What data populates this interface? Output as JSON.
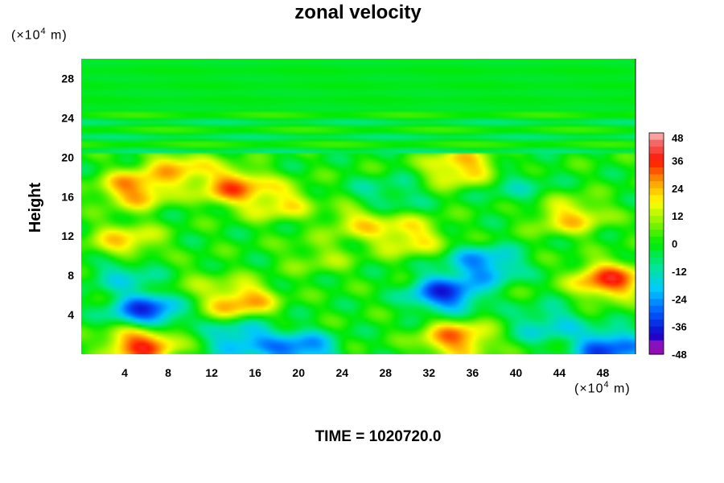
{
  "chart_data": {
    "type": "heatmap",
    "title": "zonal velocity",
    "ylabel": "Height",
    "x_unit": {
      "prefix": "(×10",
      "exp": "4",
      "suffix": " m)"
    },
    "y_unit": {
      "prefix": "(×10",
      "exp": "4",
      "suffix": " m)"
    },
    "xlim": [
      0,
      51
    ],
    "ylim": [
      0,
      30
    ],
    "x_ticks": [
      "4",
      "8",
      "12",
      "16",
      "20",
      "24",
      "28",
      "32",
      "36",
      "40",
      "44",
      "48"
    ],
    "y_ticks": [
      "4",
      "8",
      "12",
      "16",
      "20",
      "24",
      "28"
    ],
    "colorbar": {
      "vmin": -48,
      "vmax": 48,
      "ticks": [
        "48",
        "36",
        "24",
        "12",
        "0",
        "-12",
        "-24",
        "-36",
        "-48"
      ]
    },
    "features": [
      {
        "x": 5.5,
        "y": 1.0,
        "value": 52
      },
      {
        "x": 6.0,
        "y": 4.5,
        "value": -50
      },
      {
        "x": 14.5,
        "y": 5.5,
        "value": 42
      },
      {
        "x": 15.0,
        "y": 1.5,
        "value": -36
      },
      {
        "x": 20.0,
        "y": 0.4,
        "value": -44
      },
      {
        "x": 33.5,
        "y": 6.2,
        "value": -52
      },
      {
        "x": 37.0,
        "y": 9.0,
        "value": -40
      },
      {
        "x": 34.5,
        "y": 1.5,
        "value": 44
      },
      {
        "x": 48.5,
        "y": 7.5,
        "value": 52
      },
      {
        "x": 48.5,
        "y": 0.6,
        "value": -50
      },
      {
        "x": 43.0,
        "y": 3.0,
        "value": -24
      },
      {
        "x": 5.0,
        "y": 16.8,
        "value": 44
      },
      {
        "x": 14.0,
        "y": 17.0,
        "value": 46
      },
      {
        "x": 9.0,
        "y": 18.8,
        "value": 34
      },
      {
        "x": 18.0,
        "y": 15.5,
        "value": 30
      },
      {
        "x": 45.0,
        "y": 14.0,
        "value": 32
      },
      {
        "x": 35.0,
        "y": 19.0,
        "value": 38
      },
      {
        "x": 26.0,
        "y": 13.5,
        "value": 28
      },
      {
        "x": 4.0,
        "y": 11.5,
        "value": 30
      },
      {
        "x": 30.0,
        "y": 12.0,
        "value": 32
      },
      {
        "x": 4.0,
        "y": 8.0,
        "value": -20
      },
      {
        "x": 28.0,
        "y": 16.0,
        "value": -16
      },
      {
        "x": 40.0,
        "y": 17.0,
        "value": -12
      },
      {
        "x": 22.0,
        "y": 10.0,
        "value": 14
      },
      {
        "x": 11.0,
        "y": 7.0,
        "value": 10
      }
    ],
    "upper_layer_value": -2,
    "band_y": 20.0
  },
  "footer": {
    "time_label": "TIME = 1020720.0"
  }
}
